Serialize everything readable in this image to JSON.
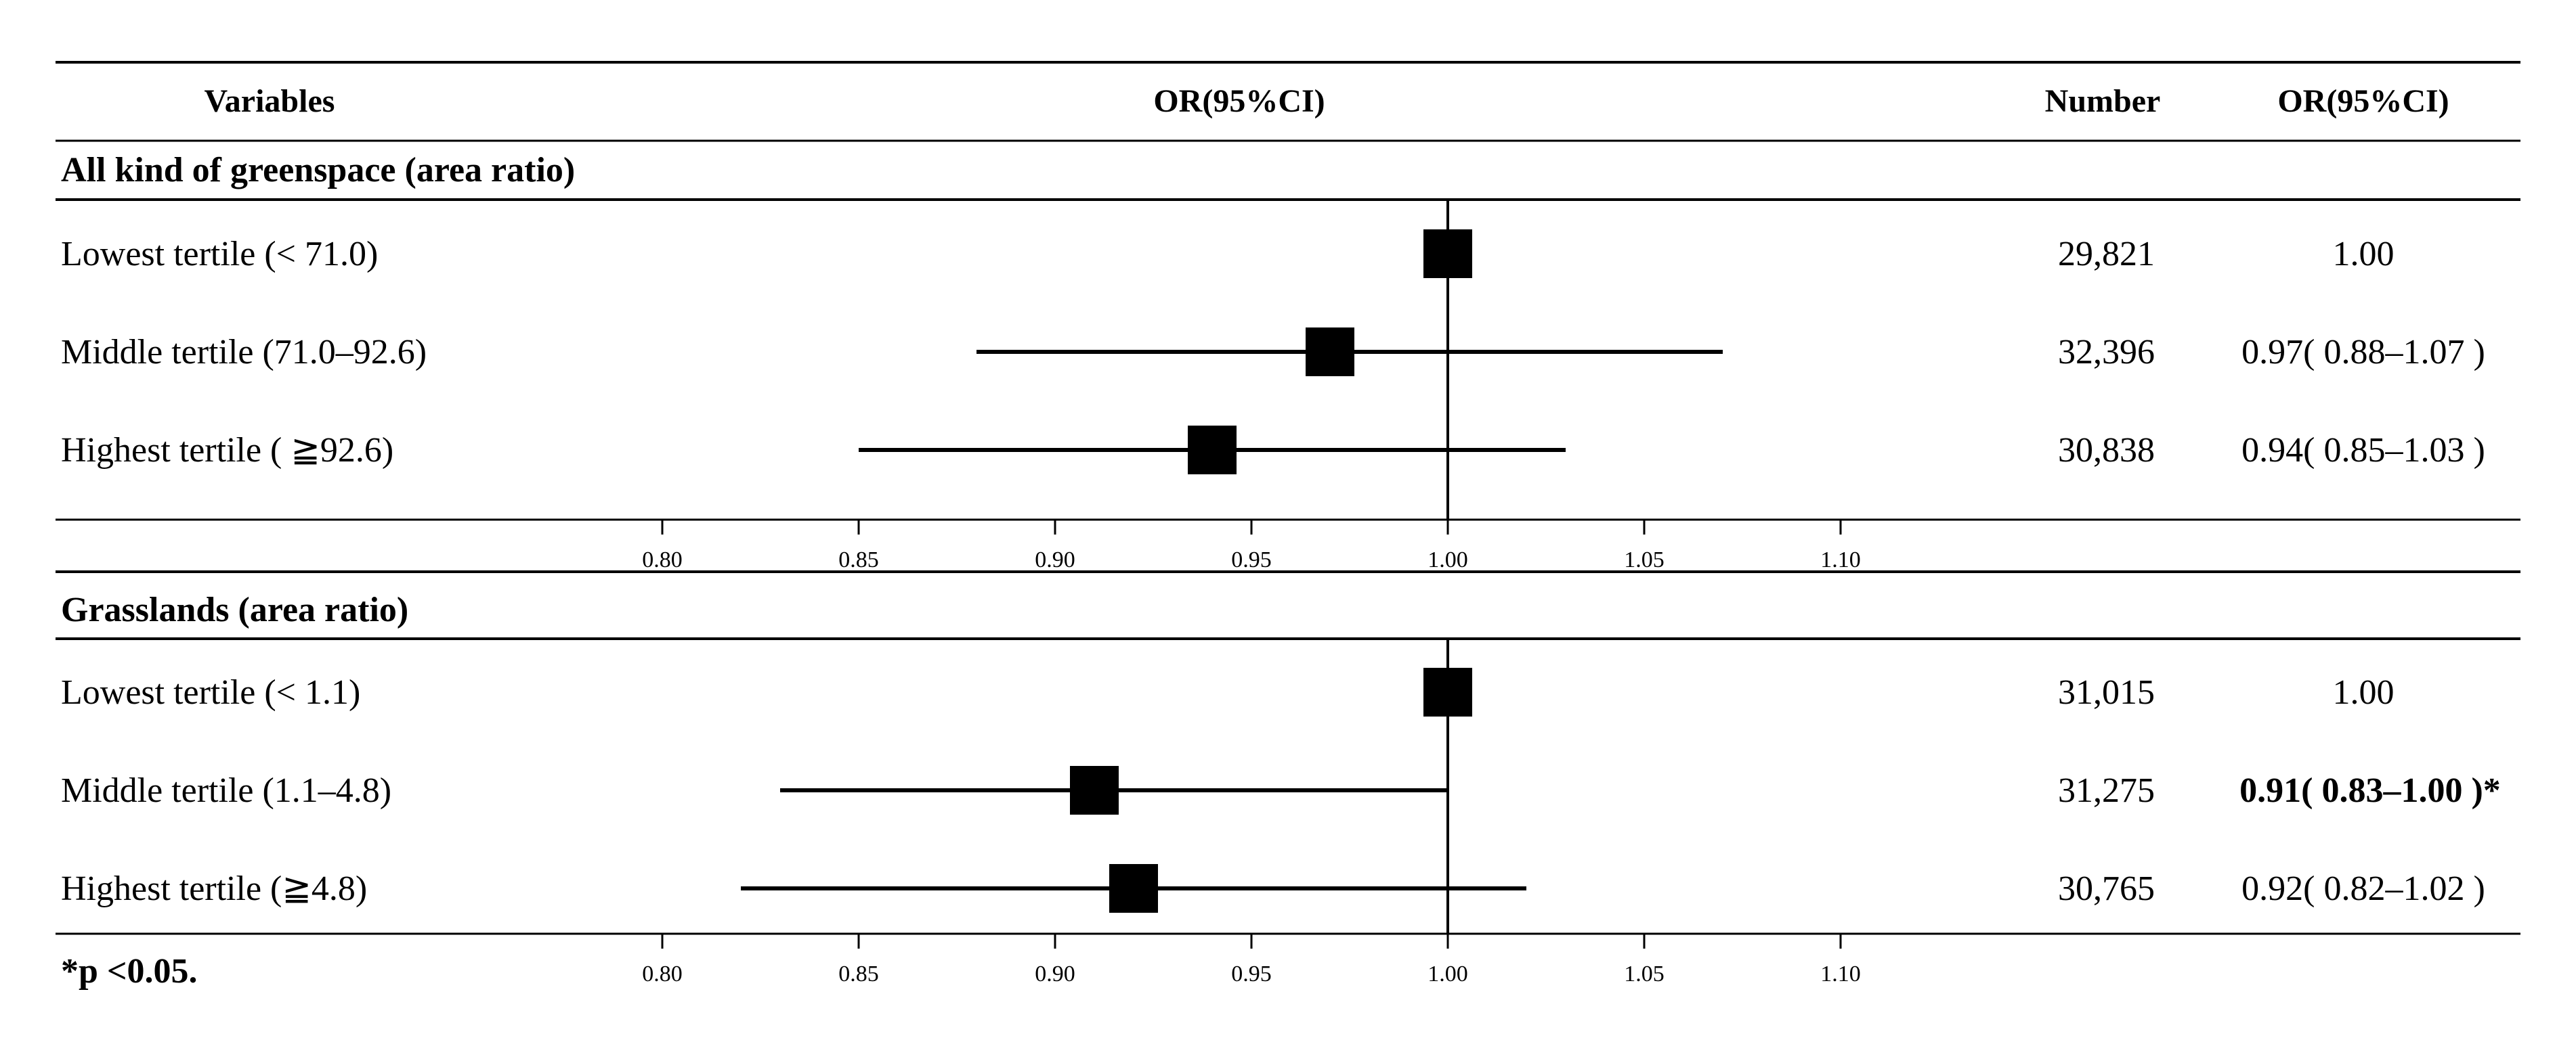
{
  "chart_data": {
    "type": "forest",
    "header": {
      "variables": "Variables",
      "plot": "OR(95%CI)",
      "number": "Number",
      "or": "OR(95%CI)"
    },
    "reference_value": 1.0,
    "xlim": [
      0.8,
      1.1
    ],
    "ticks": [
      "0.80",
      "0.85",
      "0.90",
      "0.95",
      "1.00",
      "1.05",
      "1.10"
    ],
    "tick_values": [
      0.8,
      0.85,
      0.9,
      0.95,
      1.0,
      1.05,
      1.1
    ],
    "groups": [
      {
        "title": "All kind of greenspace (area ratio)",
        "rows": [
          {
            "label": "Lowest tertile (< 71.0)",
            "or": 1.0,
            "lo": 1.0,
            "hi": 1.0,
            "number": "29,821",
            "or_text": "1.00",
            "bold": false
          },
          {
            "label": "Middle tertile (71.0–92.6)",
            "or": 0.97,
            "lo": 0.88,
            "hi": 1.07,
            "number": "32,396",
            "or_text": "0.97( 0.88–1.07 )",
            "bold": false
          },
          {
            "label": "Highest tertile ( ≧92.6)",
            "or": 0.94,
            "lo": 0.85,
            "hi": 1.03,
            "number": "30,838",
            "or_text": "0.94( 0.85–1.03 )",
            "bold": false
          }
        ]
      },
      {
        "title": "Grasslands (area ratio)",
        "rows": [
          {
            "label": "Lowest tertile (< 1.1)",
            "or": 1.0,
            "lo": 1.0,
            "hi": 1.0,
            "number": "31,015",
            "or_text": "1.00",
            "bold": false
          },
          {
            "label": "Middle tertile (1.1–4.8)",
            "or": 0.91,
            "lo": 0.83,
            "hi": 1.0,
            "number": "31,275",
            "or_text": "0.91( 0.83–1.00 )*",
            "bold": true
          },
          {
            "label": "Highest tertile (≧4.8)",
            "or": 0.92,
            "lo": 0.82,
            "hi": 1.02,
            "number": "30,765",
            "or_text": "0.92( 0.82–1.02 )",
            "bold": false
          }
        ]
      }
    ],
    "footnote": "*p <0.05."
  }
}
